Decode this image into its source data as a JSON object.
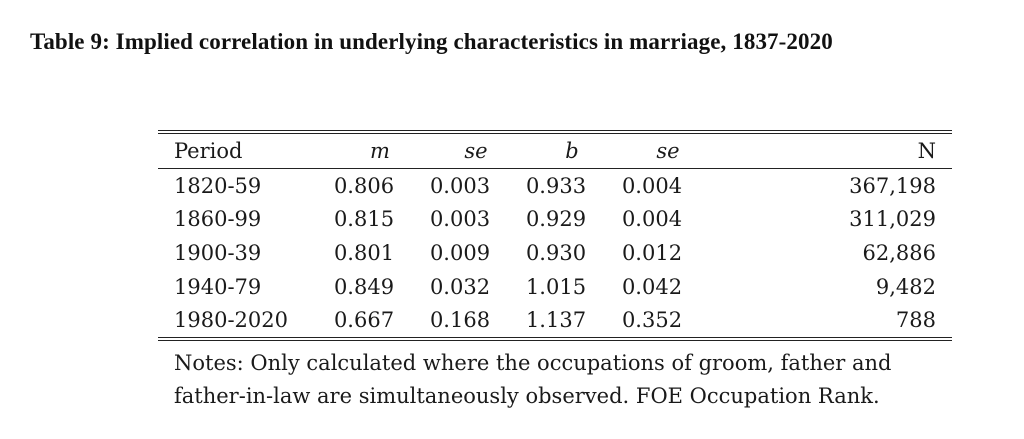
{
  "caption": "Table 9: Implied correlation in underlying characteristics in marriage, 1837-2020",
  "table": {
    "headers": {
      "period": "Period",
      "m": "m",
      "se1": "se",
      "b": "b",
      "se2": "se",
      "n": "N"
    },
    "rows": [
      {
        "period": "1820-59",
        "m": "0.806",
        "se1": "0.003",
        "b": "0.933",
        "se2": "0.004",
        "n": "367,198"
      },
      {
        "period": "1860-99",
        "m": "0.815",
        "se1": "0.003",
        "b": "0.929",
        "se2": "0.004",
        "n": "311,029"
      },
      {
        "period": "1900-39",
        "m": "0.801",
        "se1": "0.009",
        "b": "0.930",
        "se2": "0.012",
        "n": "62,886"
      },
      {
        "period": "1940-79",
        "m": "0.849",
        "se1": "0.032",
        "b": "1.015",
        "se2": "0.042",
        "n": "9,482"
      },
      {
        "period": "1980-2020",
        "m": "0.667",
        "se1": "0.168",
        "b": "1.137",
        "se2": "0.352",
        "n": "788"
      }
    ]
  },
  "notes": {
    "line1": "Notes: Only calculated where the occupations of groom, father and",
    "line2": "father-in-law are simultaneously observed. FOE Occupation Rank."
  }
}
